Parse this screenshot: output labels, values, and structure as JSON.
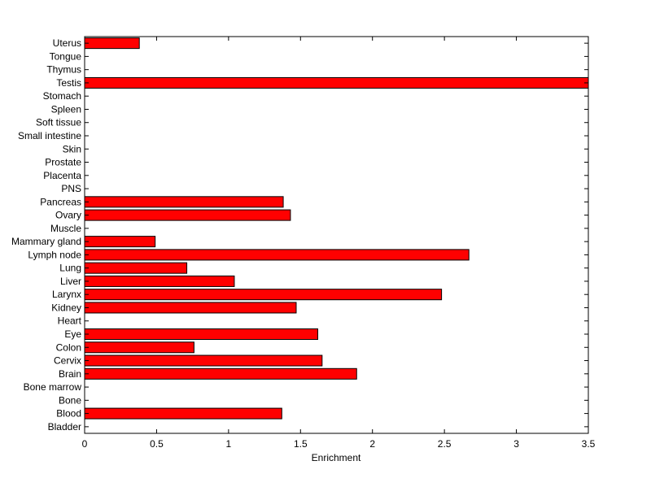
{
  "chart_data": {
    "type": "bar",
    "orientation": "horizontal",
    "title": "",
    "xlabel": "Enrichment",
    "ylabel": "",
    "xlim": [
      0,
      3.5
    ],
    "x_ticks": [
      "0",
      "0.5",
      "1",
      "1.5",
      "2",
      "2.5",
      "3",
      "3.5"
    ],
    "categories": [
      "Bladder",
      "Blood",
      "Bone",
      "Bone marrow",
      "Brain",
      "Cervix",
      "Colon",
      "Eye",
      "Heart",
      "Kidney",
      "Larynx",
      "Liver",
      "Lung",
      "Lymph node",
      "Mammary gland",
      "Muscle",
      "Ovary",
      "Pancreas",
      "PNS",
      "Placenta",
      "Prostate",
      "Skin",
      "Small intestine",
      "Soft tissue",
      "Spleen",
      "Stomach",
      "Testis",
      "Thymus",
      "Tongue",
      "Uterus"
    ],
    "values": [
      0,
      1.37,
      0,
      0,
      1.89,
      1.65,
      0.76,
      1.62,
      0,
      1.47,
      2.48,
      1.04,
      0.71,
      2.67,
      0.49,
      0,
      1.43,
      1.38,
      0,
      0,
      0,
      0,
      0,
      0,
      0,
      0,
      3.5,
      0,
      0,
      0.38
    ],
    "bar_color": "#ff0000",
    "bar_edge_color": "#000000",
    "grid": false,
    "legend": "none"
  }
}
